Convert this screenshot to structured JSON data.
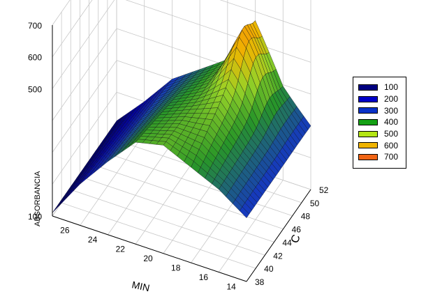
{
  "chart_data": {
    "type": "surface",
    "title": "",
    "xlabel": "MIN",
    "ylabel": "C",
    "zlabel": "ABSORBANCIA",
    "x_range": [
      13,
      27
    ],
    "y_range": [
      38,
      52
    ],
    "z_range": [
      100,
      700
    ],
    "x_ticks": [
      "26",
      "24",
      "22",
      "20",
      "18",
      "16",
      "14"
    ],
    "y_ticks": [
      "38",
      "40",
      "42",
      "44",
      "46",
      "48",
      "50",
      "52"
    ],
    "z_ticks": [
      "100",
      "500",
      "600",
      "700"
    ],
    "grid": true,
    "legend_position": "right",
    "legend": [
      {
        "label": "100",
        "color": "#000080"
      },
      {
        "label": "200",
        "color": "#0000c8"
      },
      {
        "label": "300",
        "color": "#0a32c8"
      },
      {
        "label": "400",
        "color": "#14a014"
      },
      {
        "label": "500",
        "color": "#b4e614"
      },
      {
        "label": "600",
        "color": "#f0b400"
      },
      {
        "label": "700",
        "color": "#f06414"
      }
    ],
    "surface_profile": {
      "x": [
        27,
        25,
        23,
        21,
        19,
        17,
        15,
        13
      ],
      "y_min_edge_z": [
        110,
        230,
        330,
        420,
        440,
        400,
        360,
        300
      ],
      "y_max_edge_z": [
        110,
        200,
        300,
        360,
        420,
        560,
        390,
        300
      ]
    }
  }
}
